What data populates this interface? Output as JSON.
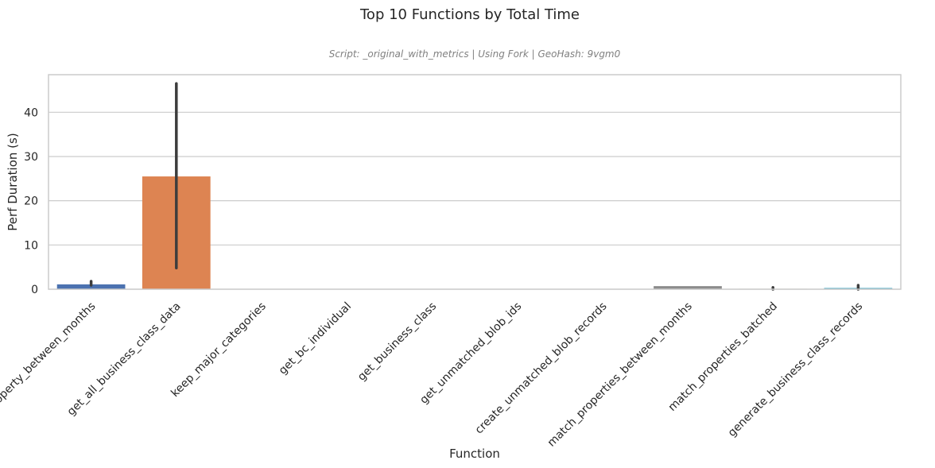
{
  "chart_data": {
    "type": "bar",
    "title": "Top 10 Functions by Total Time",
    "subtitle": "Script: _original_with_metrics | Using Fork | GeoHash: 9vgm0",
    "xlabel": "Function",
    "ylabel": "Perf Duration (s)",
    "ylim": [
      0,
      48.5
    ],
    "yticks": [
      0,
      10,
      20,
      30,
      40
    ],
    "grid": true,
    "legend": "none",
    "categories": [
      "match_property_between_months",
      "get_all_business_class_data",
      "keep_major_categories",
      "get_bc_individual",
      "get_business_class",
      "get_unmatched_blob_ids",
      "create_unmatched_blob_records",
      "match_properties_between_months",
      "match_properties_batched",
      "generate_business_class_records"
    ],
    "values": [
      1.1,
      25.5,
      0.0,
      0.0,
      0.0,
      0.0,
      0.0,
      0.7,
      0.1,
      0.3
    ],
    "error_low": [
      0.9,
      4.8,
      0.0,
      0.0,
      0.0,
      0.0,
      0.0,
      0.7,
      0.0,
      0.0
    ],
    "error_high": [
      1.8,
      46.5,
      0.0,
      0.0,
      0.0,
      0.0,
      0.0,
      0.7,
      0.4,
      0.9
    ],
    "colors": [
      "#4c72b0",
      "#dd8452",
      "#55a868",
      "#c44e52",
      "#8172b3",
      "#937860",
      "#da8bc3",
      "#8c8c8c",
      "#ccb974",
      "#64b5cd"
    ],
    "error_color": "#3d3d3d"
  }
}
